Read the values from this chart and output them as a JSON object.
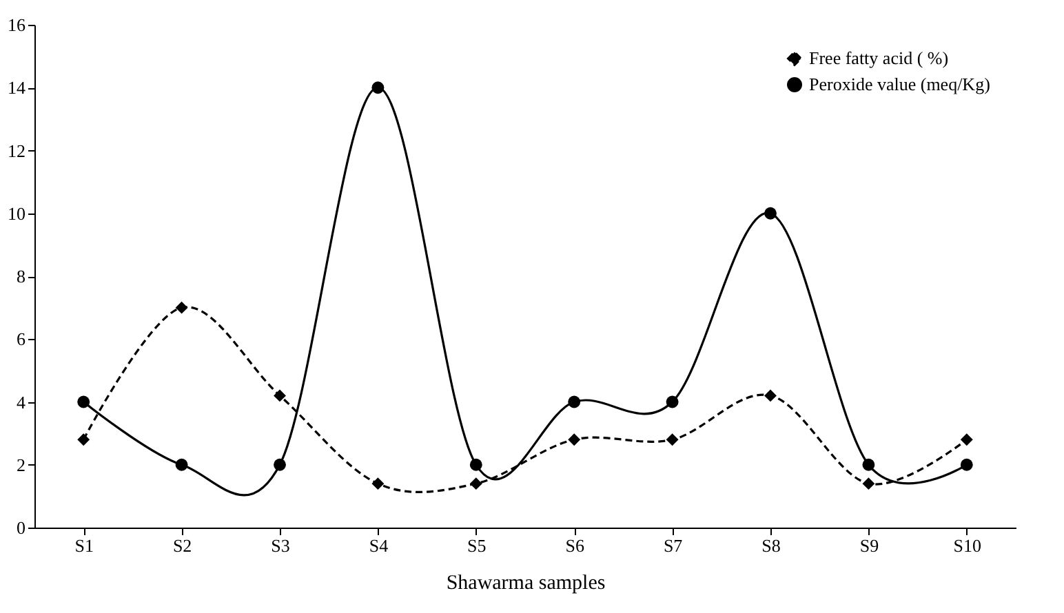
{
  "chart_data": {
    "type": "line",
    "xlabel": "Shawarma samples",
    "categories": [
      "S1",
      "S2",
      "S3",
      "S4",
      "S5",
      "S6",
      "S7",
      "S8",
      "S9",
      "S10"
    ],
    "series": [
      {
        "name": "Free fatty acid ( %)",
        "color": "#000000",
        "marker": "diamond",
        "line_style": "dashed",
        "values": [
          2.8,
          7.0,
          4.2,
          1.4,
          1.4,
          2.8,
          2.8,
          4.2,
          1.4,
          2.8
        ]
      },
      {
        "name": "Peroxide value (meq/Kg)",
        "color": "#000000",
        "marker": "circle",
        "line_style": "solid",
        "values": [
          4,
          2,
          2,
          14,
          2,
          4,
          4,
          10,
          2,
          2
        ]
      }
    ],
    "ylim": [
      0,
      16
    ],
    "yticks": [
      0,
      2,
      4,
      6,
      8,
      10,
      12,
      14,
      16
    ],
    "grid": false,
    "legend": "top right"
  }
}
